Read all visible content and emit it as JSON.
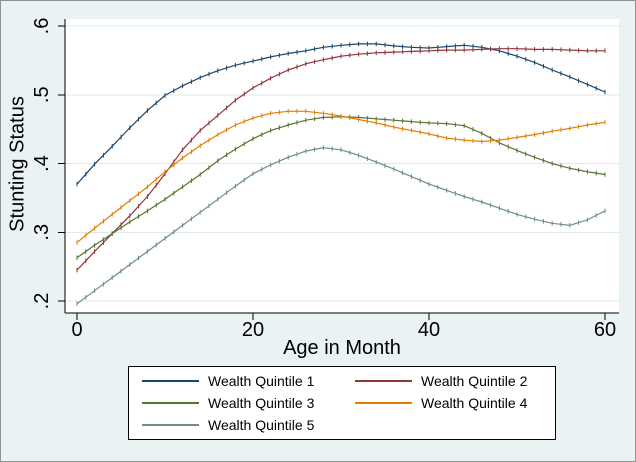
{
  "figure": {
    "background_color": "#eaf2f3",
    "plot_background_color": "#ffffff",
    "grid_color": "#dfe9eb",
    "axis_color": "#000000"
  },
  "chart_data": {
    "type": "line",
    "title": "",
    "xlabel": "Age in Month",
    "ylabel": "Stunting Status",
    "xlim": [
      0,
      60
    ],
    "ylim": [
      0.2,
      0.6
    ],
    "x_ticks": [
      "0",
      "20",
      "40",
      "60"
    ],
    "y_ticks": [
      ".2",
      ".3",
      ".4",
      ".5",
      ".6"
    ],
    "grid": "horizontal",
    "legend_position": "bottom-center",
    "x": [
      0,
      2,
      4,
      6,
      8,
      10,
      12,
      14,
      16,
      18,
      20,
      22,
      24,
      26,
      28,
      30,
      32,
      34,
      36,
      38,
      40,
      42,
      44,
      46,
      48,
      50,
      52,
      54,
      56,
      58,
      60
    ],
    "series": [
      {
        "name": "Wealth Quintile 1",
        "color": "#1a476f",
        "values": [
          0.37,
          0.399,
          0.425,
          0.452,
          0.477,
          0.499,
          0.513,
          0.525,
          0.535,
          0.543,
          0.549,
          0.555,
          0.56,
          0.564,
          0.569,
          0.572,
          0.574,
          0.574,
          0.571,
          0.569,
          0.568,
          0.57,
          0.572,
          0.569,
          0.564,
          0.556,
          0.547,
          0.536,
          0.526,
          0.515,
          0.504
        ]
      },
      {
        "name": "Wealth Quintile 2",
        "color": "#90353b",
        "values": [
          0.245,
          0.272,
          0.298,
          0.324,
          0.352,
          0.385,
          0.42,
          0.448,
          0.47,
          0.492,
          0.51,
          0.524,
          0.536,
          0.545,
          0.551,
          0.556,
          0.559,
          0.561,
          0.562,
          0.563,
          0.564,
          0.565,
          0.565,
          0.566,
          0.567,
          0.567,
          0.566,
          0.566,
          0.565,
          0.564,
          0.564
        ]
      },
      {
        "name": "Wealth Quintile 3",
        "color": "#55752f",
        "values": [
          0.263,
          0.281,
          0.298,
          0.315,
          0.331,
          0.348,
          0.366,
          0.384,
          0.404,
          0.421,
          0.436,
          0.448,
          0.456,
          0.463,
          0.467,
          0.468,
          0.467,
          0.465,
          0.463,
          0.461,
          0.459,
          0.458,
          0.455,
          0.444,
          0.43,
          0.419,
          0.409,
          0.4,
          0.393,
          0.388,
          0.384
        ]
      },
      {
        "name": "Wealth Quintile 4",
        "color": "#e37e00",
        "values": [
          0.285,
          0.306,
          0.326,
          0.346,
          0.366,
          0.388,
          0.408,
          0.426,
          0.442,
          0.456,
          0.466,
          0.473,
          0.476,
          0.476,
          0.473,
          0.469,
          0.464,
          0.459,
          0.453,
          0.448,
          0.443,
          0.437,
          0.434,
          0.432,
          0.434,
          0.438,
          0.442,
          0.447,
          0.451,
          0.456,
          0.46
        ]
      },
      {
        "name": "Wealth Quintile 5",
        "color": "#6e8e84",
        "values": [
          0.196,
          0.215,
          0.234,
          0.253,
          0.272,
          0.291,
          0.31,
          0.329,
          0.348,
          0.367,
          0.385,
          0.398,
          0.409,
          0.418,
          0.423,
          0.42,
          0.412,
          0.402,
          0.392,
          0.381,
          0.37,
          0.361,
          0.352,
          0.344,
          0.335,
          0.326,
          0.319,
          0.313,
          0.31,
          0.318,
          0.331
        ]
      }
    ]
  }
}
